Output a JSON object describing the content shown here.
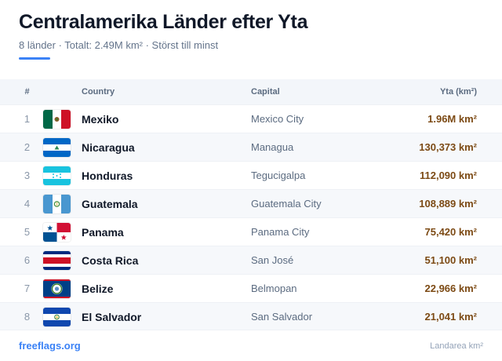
{
  "header": {
    "title": "Centralamerika Länder efter Yta",
    "subtitle": "8 länder · Totalt: 2.49M km² · Störst till minst",
    "accent_color": "#3b82f6"
  },
  "table": {
    "columns": {
      "rank": "#",
      "country": "Country",
      "capital": "Capital",
      "area": "Yta (km²)"
    },
    "rows": [
      {
        "rank": "1",
        "flag_icon": "mexico-flag-icon",
        "country": "Mexiko",
        "capital": "Mexico City",
        "area": "1.96M km²"
      },
      {
        "rank": "2",
        "flag_icon": "nicaragua-flag-icon",
        "country": "Nicaragua",
        "capital": "Managua",
        "area": "130,373 km²"
      },
      {
        "rank": "3",
        "flag_icon": "honduras-flag-icon",
        "country": "Honduras",
        "capital": "Tegucigalpa",
        "area": "112,090 km²"
      },
      {
        "rank": "4",
        "flag_icon": "guatemala-flag-icon",
        "country": "Guatemala",
        "capital": "Guatemala City",
        "area": "108,889 km²"
      },
      {
        "rank": "5",
        "flag_icon": "panama-flag-icon",
        "country": "Panama",
        "capital": "Panama City",
        "area": "75,420 km²"
      },
      {
        "rank": "6",
        "flag_icon": "costa-rica-flag-icon",
        "country": "Costa Rica",
        "capital": "San José",
        "area": "51,100 km²"
      },
      {
        "rank": "7",
        "flag_icon": "belize-flag-icon",
        "country": "Belize",
        "capital": "Belmopan",
        "area": "22,966 km²"
      },
      {
        "rank": "8",
        "flag_icon": "el-salvador-flag-icon",
        "country": "El Salvador",
        "capital": "San Salvador",
        "area": "21,041 km²"
      }
    ]
  },
  "footer": {
    "brand": "freeflags.org",
    "note": "Landarea km²"
  }
}
